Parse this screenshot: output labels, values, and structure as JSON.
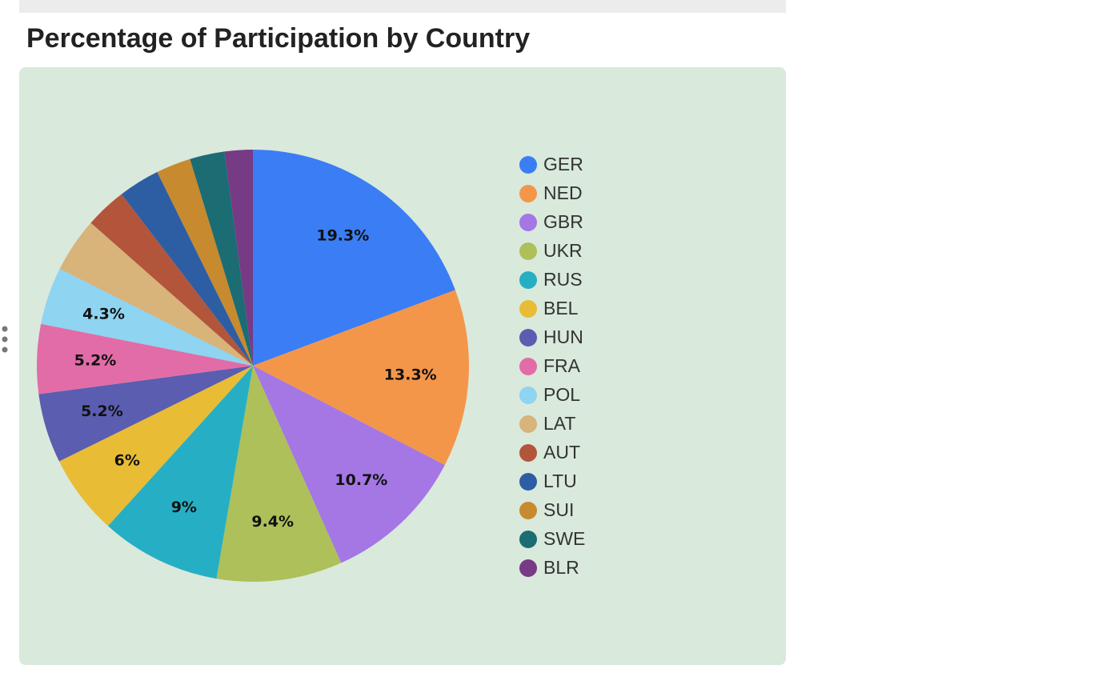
{
  "chart_data": {
    "type": "pie",
    "title": "Percentage of Participation by Country",
    "categories": [
      "GER",
      "NED",
      "GBR",
      "UKR",
      "RUS",
      "BEL",
      "HUN",
      "FRA",
      "POL",
      "LAT",
      "AUT",
      "LTU",
      "SUI",
      "SWE",
      "BLR"
    ],
    "values": [
      19.3,
      13.3,
      10.7,
      9.4,
      9,
      6,
      5.2,
      5.2,
      4.3,
      4.1,
      3.1,
      3.1,
      2.6,
      2.6,
      2.1
    ],
    "value_labels": [
      "19.3%",
      "13.3%",
      "10.7%",
      "9.4%",
      "9%",
      "6%",
      "5.2%",
      "5.2%",
      "4.3%",
      null,
      null,
      null,
      null,
      null,
      null
    ],
    "colors": [
      "#3b7df4",
      "#f4964a",
      "#a477e4",
      "#adc05a",
      "#26afc4",
      "#e8bc35",
      "#5b5db0",
      "#e26ca7",
      "#8fd4f1",
      "#d8b37a",
      "#b3553b",
      "#2d5ea3",
      "#c78a2e",
      "#1c6c73",
      "#773a85"
    ],
    "legend": "right"
  }
}
